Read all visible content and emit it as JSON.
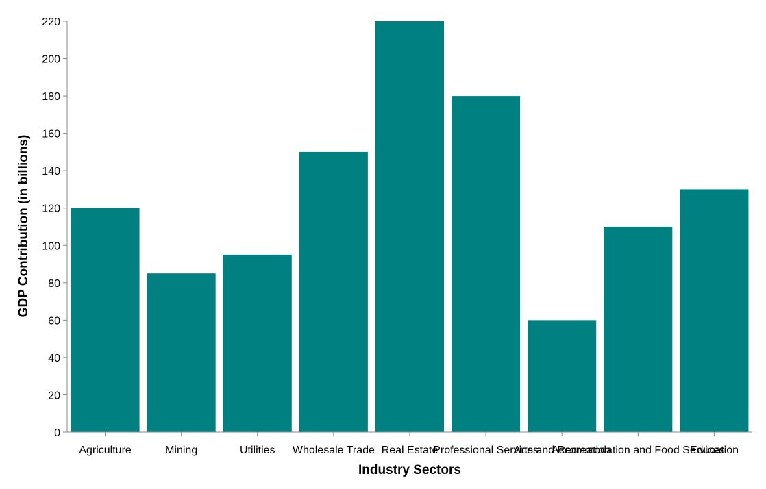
{
  "chart_data": {
    "type": "bar",
    "categories": [
      "Agriculture",
      "Mining",
      "Utilities",
      "Wholesale Trade",
      "Real Estate",
      "Professional Services",
      "Arts and Recreation",
      "Accommodation and Food Services",
      "Education"
    ],
    "values": [
      120,
      85,
      95,
      150,
      220,
      180,
      60,
      110,
      130
    ],
    "xlabel": "Industry Sectors",
    "ylabel": "GDP Contribution (in billions)",
    "ylim": [
      0,
      220
    ],
    "yticks": [
      0,
      20,
      40,
      60,
      80,
      100,
      120,
      140,
      160,
      180,
      200,
      220
    ],
    "grid": false,
    "bar_color": "#008080"
  }
}
